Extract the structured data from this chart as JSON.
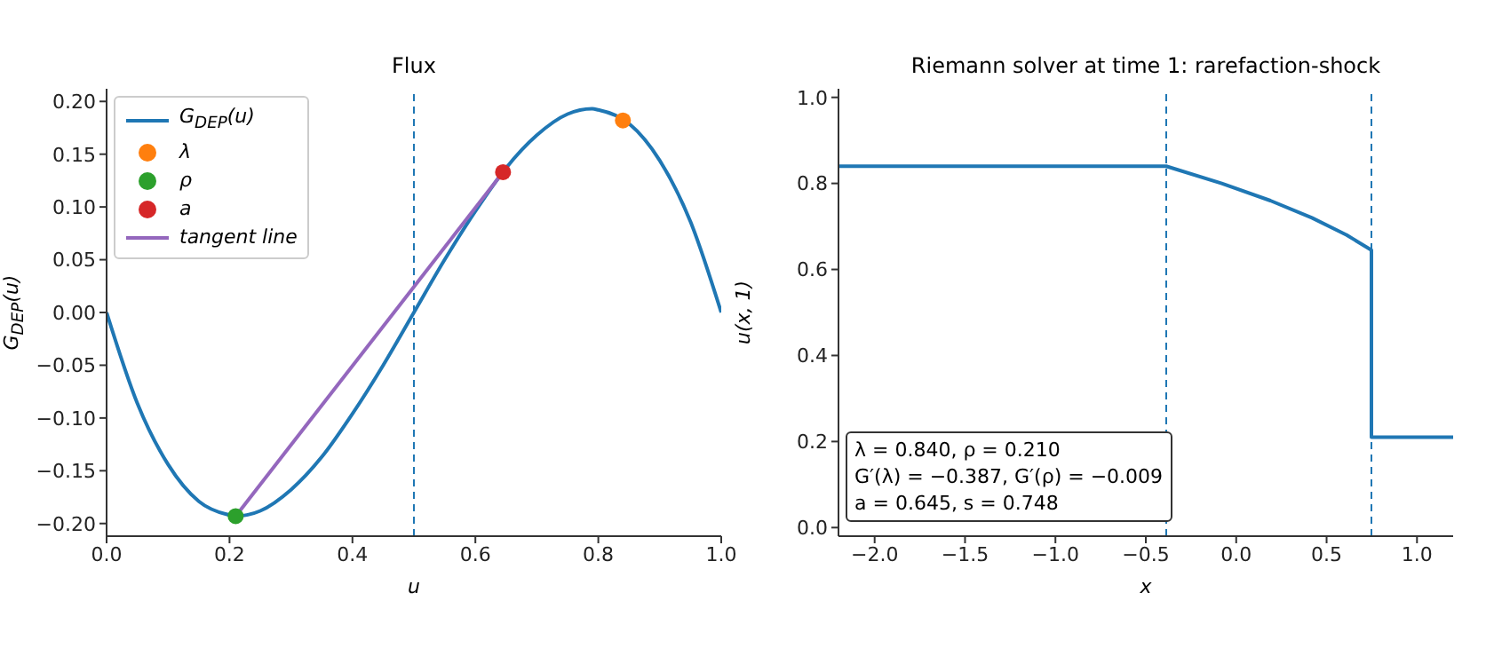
{
  "chart_data": [
    {
      "type": "line",
      "title": "Flux",
      "xlabel": "u",
      "ylabel": "G$_{DEP}$(u)",
      "xlim": [
        0,
        1
      ],
      "xticks": [
        {
          "value": 0,
          "label": "0.0"
        },
        0.2,
        0.4,
        0.6,
        0.8,
        {
          "value": 1,
          "label": "1.0"
        }
      ],
      "ylim": [
        -0.212,
        0.212
      ],
      "yticks": [
        {
          "value": -0.2,
          "label": "−0.20"
        },
        -0.15,
        {
          "value": -0.1,
          "label": "−0.10"
        },
        -0.05,
        {
          "value": 0,
          "label": "0.00"
        },
        0.05,
        {
          "value": 0.1,
          "label": "0.10"
        },
        0.15,
        {
          "value": 0.2,
          "label": "0.20"
        }
      ],
      "grid": false,
      "legend": "top left",
      "series": [
        {
          "name": "G$_{DEP}$(u)",
          "type": "line",
          "color": "#1f77b4",
          "x": [
            0,
            0.05,
            0.1,
            0.15,
            0.2,
            0.21,
            0.25,
            0.3,
            0.35,
            0.4,
            0.45,
            0.5,
            0.55,
            0.6,
            0.65,
            0.7,
            0.75,
            0.79,
            0.8,
            0.85,
            0.9,
            0.95,
            1.0
          ],
          "values": [
            0,
            -0.086,
            -0.144,
            -0.179,
            -0.192,
            -0.193,
            -0.188,
            -0.168,
            -0.137,
            -0.096,
            -0.05,
            0,
            0.05,
            0.096,
            0.137,
            0.168,
            0.188,
            0.193,
            0.192,
            0.179,
            0.144,
            0.086,
            0
          ]
        },
        {
          "name": "λ",
          "type": "scatter",
          "marker": "circle",
          "color": "#ff7f0e",
          "x": [
            0.84
          ],
          "values": [
            0.182
          ]
        },
        {
          "name": "ρ",
          "type": "scatter",
          "marker": "circle",
          "color": "#2ca02c",
          "x": [
            0.21
          ],
          "values": [
            -0.193
          ]
        },
        {
          "name": "a",
          "type": "scatter",
          "marker": "circle",
          "color": "#d62728",
          "x": [
            0.645
          ],
          "values": [
            0.133
          ]
        },
        {
          "name": "tangent line",
          "type": "line",
          "color": "#9467bd",
          "x": [
            0.21,
            0.645
          ],
          "values": [
            -0.193,
            0.133
          ]
        }
      ],
      "ref_lines": [
        {
          "axis": "x",
          "value": 0.5,
          "color": "#1f77b4",
          "line_style": "dashed"
        }
      ]
    },
    {
      "type": "line",
      "title": "Riemann solver at time 1: rarefaction-shock",
      "xlabel": "x",
      "ylabel": "u(x, 1)",
      "xlim": [
        -2.2,
        1.2
      ],
      "xticks": [
        {
          "value": -2,
          "label": "−2.0"
        },
        -1.5,
        {
          "value": -1,
          "label": "−1.0"
        },
        -0.5,
        {
          "value": 0,
          "label": "0.0"
        },
        0.5,
        {
          "value": 1,
          "label": "1.0"
        }
      ],
      "ylim": [
        -0.02,
        1.02
      ],
      "yticks": [
        {
          "value": 0,
          "label": "0.0"
        },
        0.2,
        0.4,
        0.6,
        0.8,
        {
          "value": 1,
          "label": "1.0"
        }
      ],
      "grid": false,
      "legend": false,
      "series": [
        {
          "type": "line",
          "color": "#1f77b4",
          "x": [
            -2.2,
            -0.387,
            -0.08,
            0.189,
            0.419,
            0.611,
            0.748,
            0.748,
            1.2
          ],
          "values": [
            0.84,
            0.84,
            0.8,
            0.76,
            0.72,
            0.68,
            0.645,
            0.21,
            0.21
          ]
        }
      ],
      "ref_lines": [
        {
          "axis": "x",
          "value": -0.387,
          "color": "#1f77b4",
          "line_style": "dashed"
        },
        {
          "axis": "x",
          "value": 0.748,
          "color": "#1f77b4",
          "line_style": "dashed"
        }
      ],
      "annotations": [
        "λ = 0.840,  ρ = 0.210",
        "G′(λ) = −0.387,  G′(ρ) = −0.009",
        "a = 0.645,  s = 0.748"
      ]
    }
  ]
}
